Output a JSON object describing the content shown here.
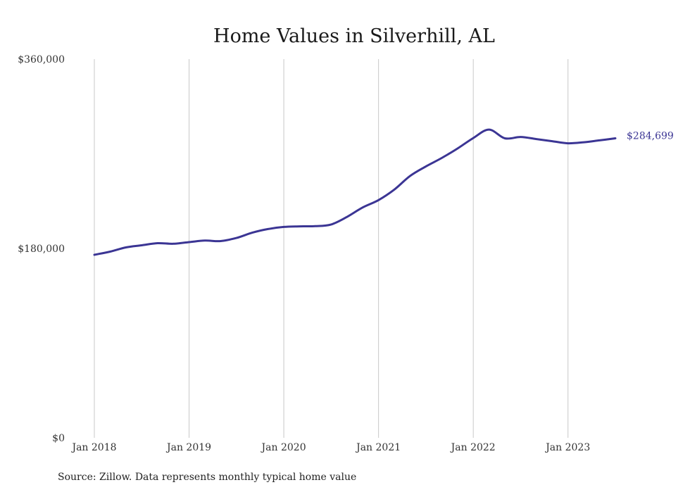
{
  "chart_data": {
    "type": "line",
    "title": "Home Values in Silverhill, AL",
    "source": "Source: Zillow. Data represents monthly typical home value",
    "xlabel": "",
    "ylabel": "",
    "ylim": [
      0,
      360000
    ],
    "y_ticks": [
      {
        "value": 0,
        "label": "$0"
      },
      {
        "value": 180000,
        "label": "$180,000"
      },
      {
        "value": 360000,
        "label": "$360,000"
      }
    ],
    "x_ticks": [
      {
        "value": "2018-01",
        "label": "Jan 2018"
      },
      {
        "value": "2019-01",
        "label": "Jan 2019"
      },
      {
        "value": "2020-01",
        "label": "Jan 2020"
      },
      {
        "value": "2021-01",
        "label": "Jan 2021"
      },
      {
        "value": "2022-01",
        "label": "Jan 2022"
      },
      {
        "value": "2023-01",
        "label": "Jan 2023"
      }
    ],
    "x_range": [
      "2018-01",
      "2023-07"
    ],
    "grid": "vertical",
    "line_color": "#3b3594",
    "end_label": "$284,699",
    "series": [
      {
        "x": [
          "2018-01",
          "2018-03",
          "2018-05",
          "2018-07",
          "2018-09",
          "2018-11",
          "2019-01",
          "2019-03",
          "2019-05",
          "2019-07",
          "2019-09",
          "2019-11",
          "2020-01",
          "2020-03",
          "2020-05",
          "2020-07",
          "2020-09",
          "2020-11",
          "2021-01",
          "2021-03",
          "2021-05",
          "2021-07",
          "2021-09",
          "2021-11",
          "2022-01",
          "2022-03",
          "2022-05",
          "2022-07",
          "2022-09",
          "2022-11",
          "2023-01",
          "2023-03",
          "2023-05",
          "2023-07"
        ],
        "values": [
          174000,
          177000,
          181000,
          183000,
          185000,
          184500,
          186000,
          187500,
          187000,
          190000,
          195000,
          198500,
          200500,
          201000,
          201200,
          202800,
          210000,
          219000,
          226000,
          236000,
          249000,
          258000,
          266000,
          275000,
          285000,
          293000,
          284699,
          286000,
          284000,
          282000,
          280000,
          281000,
          282800,
          284699
        ]
      }
    ]
  }
}
